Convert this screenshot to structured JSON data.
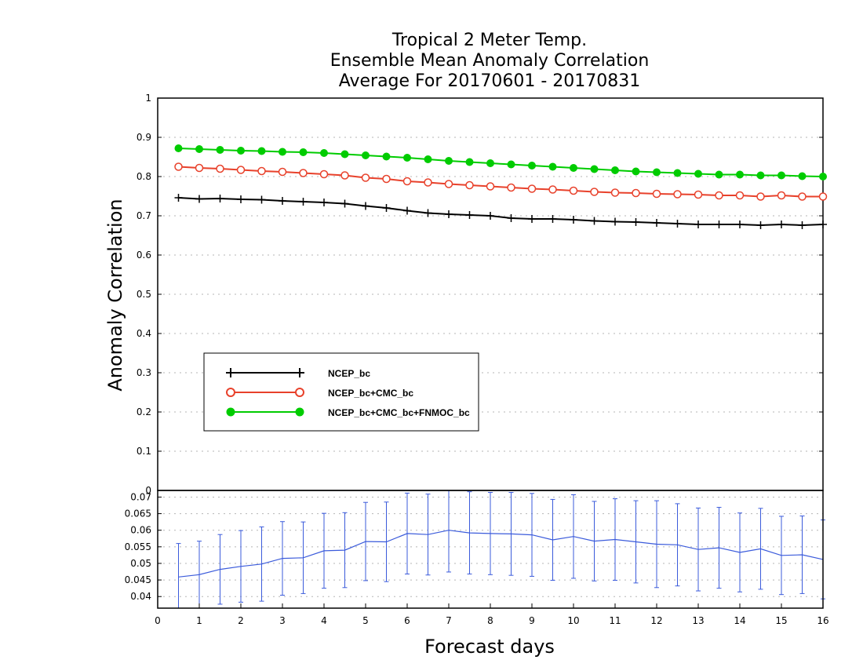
{
  "chart_data": [
    {
      "type": "line",
      "title": [
        "Tropical 2 Meter Temp.",
        "Ensemble Mean Anomaly Correlation",
        "Average For 20170601 - 20170831"
      ],
      "ylabel": "Anomaly Correlation",
      "ylim": [
        0,
        1
      ],
      "yticks": [
        "0",
        "0.1",
        "0.2",
        "0.3",
        "0.4",
        "0.5",
        "0.6",
        "0.7",
        "0.8",
        "0.9",
        "1"
      ],
      "grid": true,
      "legend_position": "left-middle",
      "x": [
        0.5,
        1.0,
        1.5,
        2.0,
        2.5,
        3.0,
        3.5,
        4.0,
        4.5,
        5.0,
        5.5,
        6.0,
        6.5,
        7.0,
        7.5,
        8.0,
        8.5,
        9.0,
        9.5,
        10.0,
        10.5,
        11.0,
        11.5,
        12.0,
        12.5,
        13.0,
        13.5,
        14.0,
        14.5,
        15.0,
        15.5,
        16.0
      ],
      "series": [
        {
          "name": "NCEP_bc",
          "color": "#000000",
          "marker": "plus",
          "values": [
            0.746,
            0.743,
            0.744,
            0.742,
            0.741,
            0.738,
            0.736,
            0.734,
            0.731,
            0.725,
            0.72,
            0.713,
            0.707,
            0.704,
            0.702,
            0.7,
            0.694,
            0.692,
            0.692,
            0.69,
            0.687,
            0.685,
            0.684,
            0.682,
            0.68,
            0.678,
            0.678,
            0.678,
            0.676,
            0.678,
            0.676,
            0.678
          ]
        },
        {
          "name": "NCEP_bc+CMC_bc",
          "color": "#e8412b",
          "marker": "open-circle",
          "values": [
            0.825,
            0.822,
            0.82,
            0.817,
            0.814,
            0.812,
            0.809,
            0.806,
            0.803,
            0.797,
            0.794,
            0.788,
            0.785,
            0.781,
            0.778,
            0.775,
            0.772,
            0.769,
            0.767,
            0.764,
            0.761,
            0.759,
            0.758,
            0.756,
            0.755,
            0.754,
            0.752,
            0.752,
            0.749,
            0.752,
            0.749,
            0.749
          ]
        },
        {
          "name": "NCEP_bc+CMC_bc+FNMOC_bc",
          "color": "#00cc00",
          "marker": "filled-circle",
          "values": [
            0.872,
            0.87,
            0.868,
            0.866,
            0.865,
            0.863,
            0.862,
            0.86,
            0.857,
            0.854,
            0.851,
            0.848,
            0.844,
            0.84,
            0.837,
            0.834,
            0.831,
            0.828,
            0.825,
            0.822,
            0.819,
            0.816,
            0.813,
            0.811,
            0.809,
            0.807,
            0.805,
            0.805,
            0.803,
            0.803,
            0.801,
            0.8
          ]
        }
      ]
    },
    {
      "type": "line",
      "xlabel": "Forecast days",
      "xlim": [
        0,
        16
      ],
      "xticks": [
        "0",
        "1",
        "2",
        "3",
        "4",
        "5",
        "6",
        "7",
        "8",
        "9",
        "10",
        "11",
        "12",
        "13",
        "14",
        "15",
        "16"
      ],
      "ylim": [
        0.0365,
        0.072
      ],
      "yticks": [
        "0.04",
        "0.045",
        "0.05",
        "0.055",
        "0.06",
        "0.065",
        "0.07"
      ],
      "grid": true,
      "x": [
        0.5,
        1.0,
        1.5,
        2.0,
        2.5,
        3.0,
        3.5,
        4.0,
        4.5,
        5.0,
        5.5,
        6.0,
        6.5,
        7.0,
        7.5,
        8.0,
        8.5,
        9.0,
        9.5,
        10.0,
        10.5,
        11.0,
        11.5,
        12.0,
        12.5,
        13.0,
        13.5,
        14.0,
        14.5,
        15.0,
        15.5,
        16.0
      ],
      "series": [
        {
          "name": "",
          "color": "#3b5bdb",
          "values": [
            0.0459,
            0.0466,
            0.0482,
            0.0491,
            0.0498,
            0.0515,
            0.0517,
            0.0538,
            0.054,
            0.0566,
            0.0565,
            0.059,
            0.0587,
            0.06,
            0.0592,
            0.059,
            0.0589,
            0.0586,
            0.0571,
            0.0581,
            0.0567,
            0.0572,
            0.0565,
            0.0558,
            0.0556,
            0.0542,
            0.0547,
            0.0533,
            0.0544,
            0.0524,
            0.0526,
            0.0512
          ],
          "error": [
            0.0101,
            0.0101,
            0.0105,
            0.0108,
            0.0112,
            0.0111,
            0.0108,
            0.0113,
            0.0113,
            0.0118,
            0.012,
            0.0122,
            0.0122,
            0.0126,
            0.0124,
            0.0124,
            0.0125,
            0.0125,
            0.0122,
            0.0126,
            0.012,
            0.0123,
            0.0124,
            0.0131,
            0.0124,
            0.0125,
            0.0122,
            0.0119,
            0.0122,
            0.0118,
            0.0117,
            0.0119
          ]
        }
      ]
    }
  ]
}
